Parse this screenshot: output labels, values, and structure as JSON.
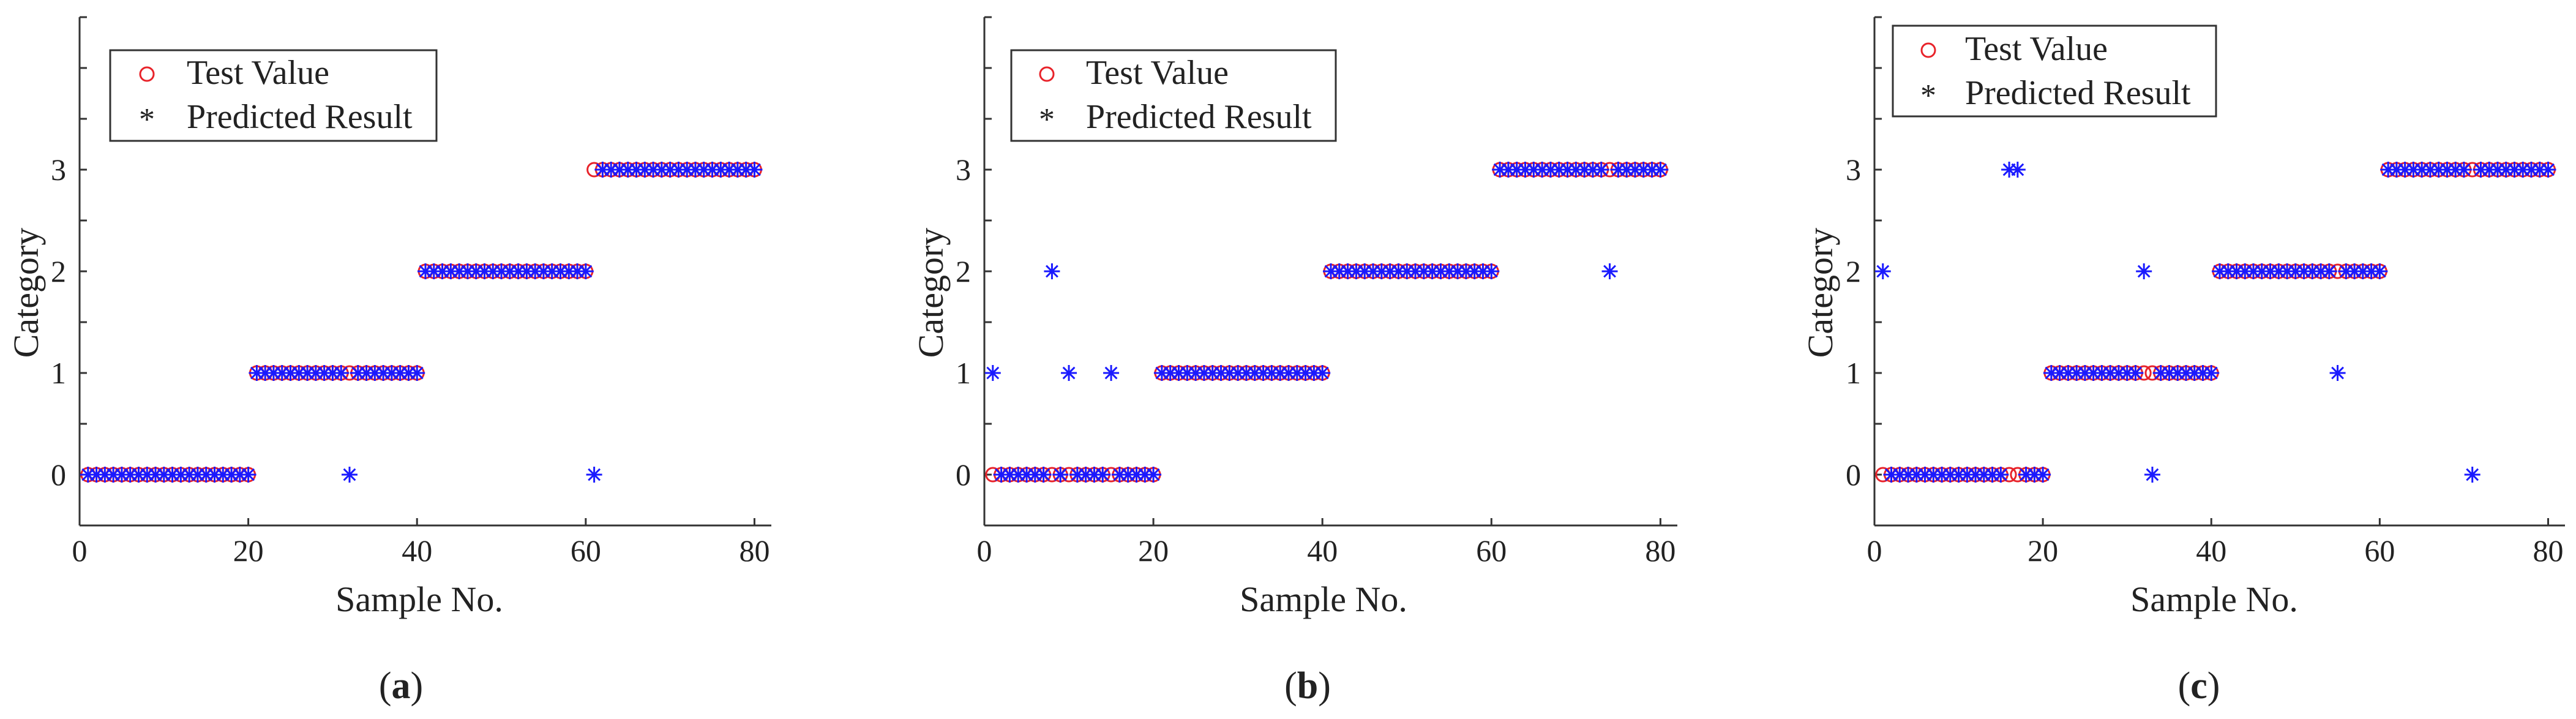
{
  "colors": {
    "test": "#e8232a",
    "pred": "#1a1aff",
    "axis": "#333333"
  },
  "chart_data": [
    {
      "type": "scatter",
      "panel_label": "a",
      "xlabel": "Sample No.",
      "ylabel": "Category",
      "xlim": [
        0,
        82
      ],
      "ylim": [
        -0.5,
        4.5
      ],
      "xticks": [
        "0",
        "20",
        "40",
        "60",
        "80"
      ],
      "yticks": [
        "0",
        "1",
        "2",
        "3"
      ],
      "legend": [
        "Test Value",
        "Predicted Result"
      ],
      "legend_position": "top-left",
      "series": [
        {
          "name": "Test Value",
          "x_range": [
            1,
            80
          ],
          "segments": [
            {
              "from": 1,
              "to": 20,
              "y": 0
            },
            {
              "from": 21,
              "to": 40,
              "y": 1
            },
            {
              "from": 41,
              "to": 60,
              "y": 2
            },
            {
              "from": 61,
              "to": 80,
              "y": 3
            }
          ]
        },
        {
          "name": "Predicted Result",
          "x_range": [
            1,
            80
          ],
          "segments": [
            {
              "from": 1,
              "to": 20,
              "y": 0
            },
            {
              "from": 21,
              "to": 40,
              "y": 1
            },
            {
              "from": 41,
              "to": 60,
              "y": 2
            },
            {
              "from": 61,
              "to": 80,
              "y": 3
            }
          ],
          "overrides": [
            {
              "x": 32,
              "y": 0
            },
            {
              "x": 61,
              "y": 0
            }
          ]
        }
      ]
    },
    {
      "type": "scatter",
      "panel_label": "b",
      "xlabel": "Sample No.",
      "ylabel": "Category",
      "xlim": [
        0,
        82
      ],
      "ylim": [
        -0.5,
        4.5
      ],
      "xticks": [
        "0",
        "20",
        "40",
        "60",
        "80"
      ],
      "yticks": [
        "0",
        "1",
        "2",
        "3"
      ],
      "legend": [
        "Test Value",
        "Predicted Result"
      ],
      "legend_position": "top-left",
      "series": [
        {
          "name": "Test Value",
          "x_range": [
            1,
            80
          ],
          "segments": [
            {
              "from": 1,
              "to": 20,
              "y": 0
            },
            {
              "from": 21,
              "to": 40,
              "y": 1
            },
            {
              "from": 41,
              "to": 60,
              "y": 2
            },
            {
              "from": 61,
              "to": 80,
              "y": 3
            }
          ]
        },
        {
          "name": "Predicted Result",
          "x_range": [
            1,
            80
          ],
          "segments": [
            {
              "from": 1,
              "to": 20,
              "y": 0
            },
            {
              "from": 21,
              "to": 40,
              "y": 1
            },
            {
              "from": 41,
              "to": 60,
              "y": 2
            },
            {
              "from": 61,
              "to": 80,
              "y": 3
            }
          ],
          "overrides": [
            {
              "x": 1,
              "y": 1
            },
            {
              "x": 8,
              "y": 2
            },
            {
              "x": 10,
              "y": 1
            },
            {
              "x": 15,
              "y": 1
            },
            {
              "x": 74,
              "y": 2
            }
          ]
        }
      ]
    },
    {
      "type": "scatter",
      "panel_label": "c",
      "xlabel": "Sample No.",
      "ylabel": "Category",
      "xlim": [
        0,
        82
      ],
      "ylim": [
        -0.5,
        4.5
      ],
      "xticks": [
        "0",
        "20",
        "40",
        "60",
        "80"
      ],
      "yticks": [
        "0",
        "1",
        "2",
        "3"
      ],
      "legend": [
        "Test Value",
        "Predicted Result"
      ],
      "legend_position": "top-left",
      "series": [
        {
          "name": "Test Value",
          "x_range": [
            1,
            80
          ],
          "segments": [
            {
              "from": 1,
              "to": 20,
              "y": 0
            },
            {
              "from": 21,
              "to": 40,
              "y": 1
            },
            {
              "from": 41,
              "to": 60,
              "y": 2
            },
            {
              "from": 61,
              "to": 80,
              "y": 3
            }
          ]
        },
        {
          "name": "Predicted Result",
          "x_range": [
            1,
            80
          ],
          "segments": [
            {
              "from": 1,
              "to": 20,
              "y": 0
            },
            {
              "from": 21,
              "to": 40,
              "y": 1
            },
            {
              "from": 41,
              "to": 60,
              "y": 2
            },
            {
              "from": 61,
              "to": 80,
              "y": 3
            }
          ],
          "overrides": [
            {
              "x": 1,
              "y": 2
            },
            {
              "x": 16,
              "y": 3
            },
            {
              "x": 17,
              "y": 3
            },
            {
              "x": 32,
              "y": 2
            },
            {
              "x": 33,
              "y": 0
            },
            {
              "x": 55,
              "y": 1
            },
            {
              "x": 71,
              "y": 0
            }
          ]
        }
      ]
    }
  ]
}
